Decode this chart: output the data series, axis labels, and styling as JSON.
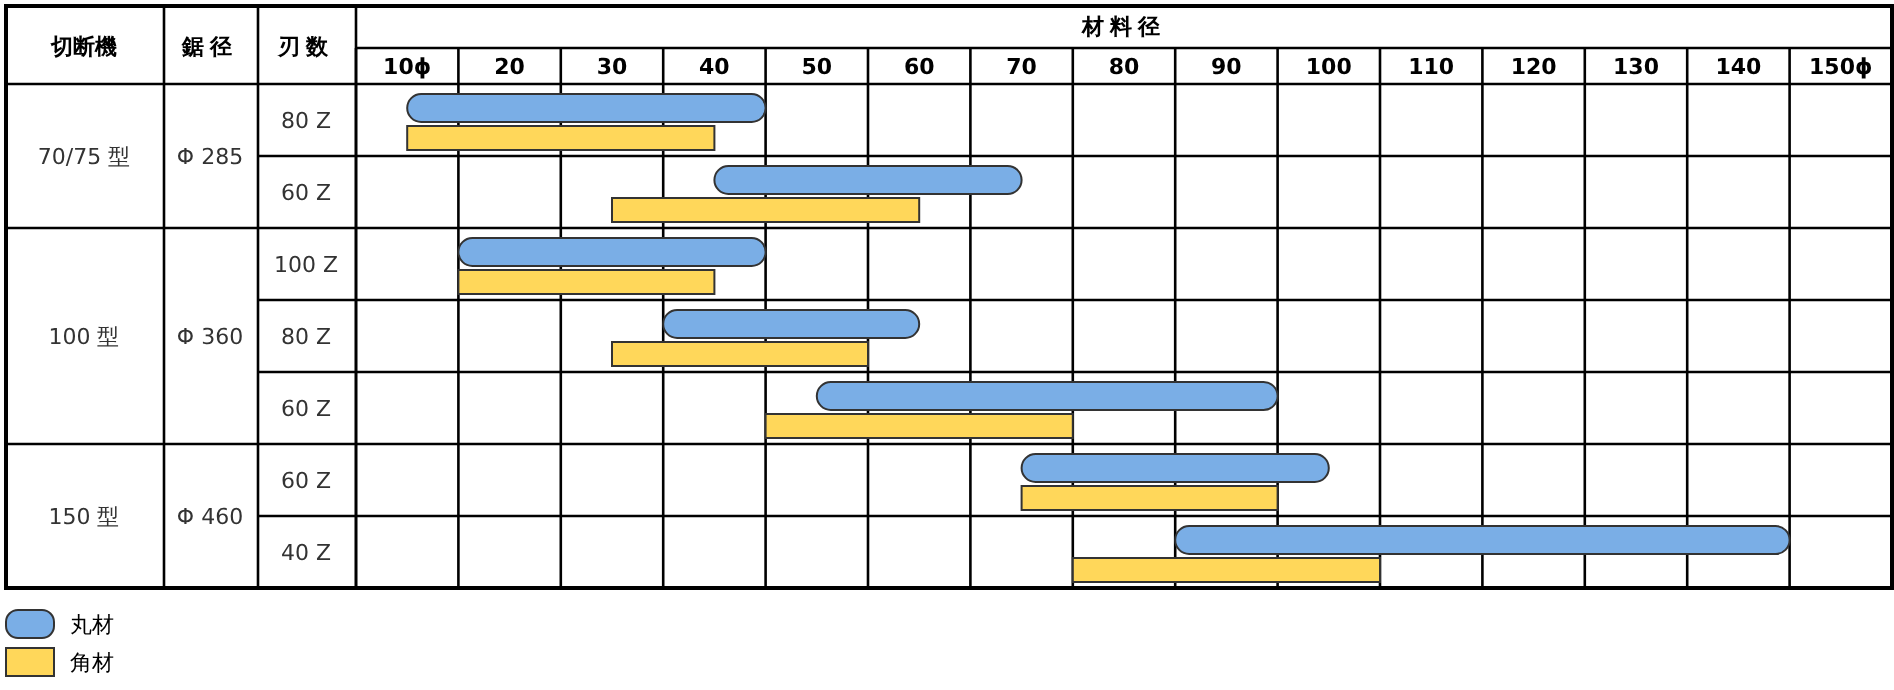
{
  "chart_data": {
    "type": "bar",
    "orientation": "horizontal",
    "xlabel": "材料径",
    "categories": [
      "80 Z",
      "60 Z",
      "100 Z",
      "80 Z",
      "60 Z",
      "60 Z",
      "40 Z"
    ],
    "series": [
      {
        "name": "丸材",
        "color": "#7aaee6",
        "base": [
          10,
          40,
          15,
          35,
          50,
          70,
          85
        ],
        "values": [
          35,
          30,
          30,
          25,
          45,
          30,
          60
        ]
      },
      {
        "name": "角材",
        "color": "#ffd75a",
        "base": [
          10,
          30,
          15,
          30,
          45,
          70,
          75
        ],
        "values": [
          30,
          30,
          25,
          25,
          30,
          25,
          30
        ]
      }
    ],
    "xlim": [
      5,
      155
    ],
    "xticks": [
      {
        "value": 10,
        "label": "10ϕ"
      },
      20,
      30,
      40,
      50,
      60,
      70,
      80,
      90,
      100,
      110,
      120,
      130,
      {
        "value": 140,
        "label": "140"
      },
      {
        "value": 150,
        "label": "150ϕ"
      }
    ],
    "grid": "x",
    "legend": "bottom left",
    "annotations": [
      "切断機",
      "鋸径",
      "刃数",
      "70/75 型",
      "Φ 285",
      "100 型",
      "Φ 360",
      "150 型",
      "Φ 460"
    ]
  }
}
